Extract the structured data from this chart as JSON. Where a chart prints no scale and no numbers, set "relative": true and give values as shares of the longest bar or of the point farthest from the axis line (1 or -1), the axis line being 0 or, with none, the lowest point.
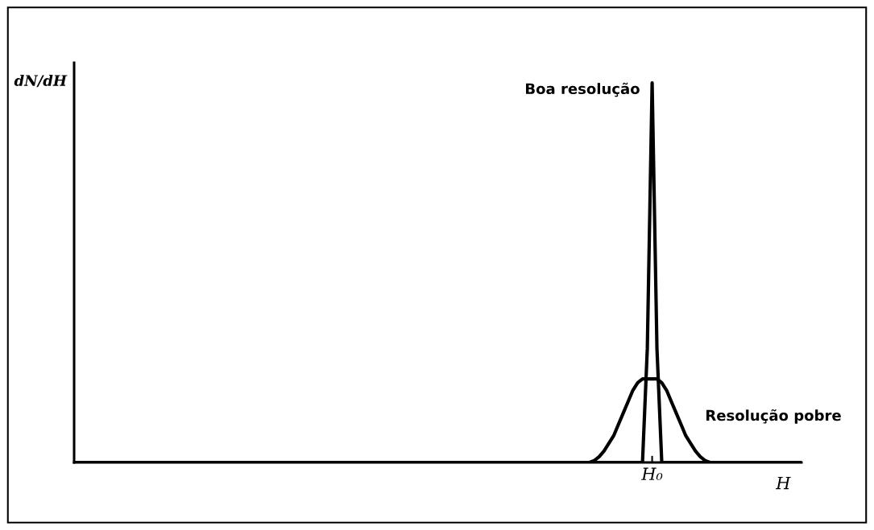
{
  "chart_data": {
    "type": "line",
    "relative": true,
    "ylabel": "dN/dH",
    "xlabel": "H",
    "categories": [
      null,
      null,
      null,
      null,
      null,
      null,
      null,
      null,
      null,
      null,
      null,
      null,
      null,
      null,
      null,
      null,
      null,
      null,
      null,
      null,
      null,
      null,
      null,
      null,
      null,
      null,
      null,
      null,
      null,
      null,
      null,
      null,
      null,
      null,
      null,
      null,
      null,
      null,
      null,
      null,
      null,
      null,
      null,
      null,
      null,
      null,
      null,
      null,
      null,
      null,
      null,
      null,
      null,
      null,
      null,
      null,
      null,
      null,
      null,
      null,
      null,
      null,
      null,
      null,
      null,
      null,
      null,
      null,
      null,
      null,
      null,
      null,
      null,
      null,
      null,
      null,
      null,
      null,
      null,
      null,
      null,
      null,
      null,
      null,
      null,
      null,
      null,
      null,
      null,
      null,
      null,
      null,
      null,
      null,
      null,
      null,
      null,
      null,
      null,
      null,
      null,
      null,
      null,
      null,
      null,
      null,
      null,
      null,
      null,
      null,
      null,
      null,
      null,
      null,
      null,
      null,
      null,
      null,
      null,
      null,
      null,
      null,
      null,
      null,
      null,
      null,
      null,
      null,
      null,
      null,
      null,
      null,
      null,
      null,
      null,
      null,
      null,
      null,
      null,
      null,
      null,
      null,
      null,
      null,
      null,
      null,
      null,
      null,
      null,
      null,
      null,
      null
    ],
    "series": [
      {
        "name": "Boa resolução",
        "color": "#000000",
        "values": [
          0,
          0,
          0,
          0,
          0,
          0,
          0,
          0,
          0,
          0,
          0,
          0,
          0,
          0,
          0,
          0,
          0,
          0,
          0,
          0,
          0,
          0,
          0,
          0,
          0,
          0,
          0,
          0,
          0,
          0,
          0,
          0,
          0,
          0,
          0,
          0,
          0,
          0,
          0,
          0,
          0,
          0,
          0,
          0,
          0,
          0,
          0,
          0,
          0,
          0,
          0,
          0,
          0,
          0,
          0,
          0,
          0,
          0,
          0,
          0,
          0,
          0,
          0,
          0,
          0,
          0,
          0,
          0,
          0,
          0,
          0,
          0,
          0,
          0,
          0,
          0,
          0,
          0,
          0,
          0,
          0,
          0,
          0,
          0,
          0,
          0,
          0,
          0,
          0,
          0,
          0,
          0,
          0,
          0,
          0,
          0,
          0,
          0,
          0,
          0,
          0,
          0,
          0,
          0,
          0,
          0,
          0,
          0,
          0,
          0,
          0,
          0,
          0,
          0,
          0,
          0,
          0,
          0,
          0,
          0.3,
          1,
          0.3,
          0,
          0,
          0,
          0,
          0,
          0,
          0,
          0,
          0,
          0,
          0,
          0,
          0,
          0,
          0,
          0,
          0,
          0,
          0,
          0,
          0,
          0,
          0,
          0,
          0,
          0,
          0,
          0,
          0,
          0
        ]
      },
      {
        "name": "Resolução pobre",
        "color": "#000000",
        "values": [
          0,
          0,
          0,
          0,
          0,
          0,
          0,
          0,
          0,
          0,
          0,
          0,
          0,
          0,
          0,
          0,
          0,
          0,
          0,
          0,
          0,
          0,
          0,
          0,
          0,
          0,
          0,
          0,
          0,
          0,
          0,
          0,
          0,
          0,
          0,
          0,
          0,
          0,
          0,
          0,
          0,
          0,
          0,
          0,
          0,
          0,
          0,
          0,
          0,
          0,
          0,
          0,
          0,
          0,
          0,
          0,
          0,
          0,
          0,
          0,
          0,
          0,
          0,
          0,
          0,
          0,
          0,
          0,
          0,
          0,
          0,
          0,
          0,
          0,
          0,
          0,
          0,
          0,
          0,
          0,
          0,
          0,
          0,
          0,
          0,
          0,
          0,
          0,
          0,
          0,
          0,
          0,
          0,
          0,
          0,
          0,
          0,
          0,
          0,
          0,
          0,
          0,
          0,
          0,
          0,
          0,
          0,
          0,
          0.005,
          0.015,
          0.03,
          0.05,
          0.07,
          0.1,
          0.13,
          0.16,
          0.19,
          0.21,
          0.22,
          0.22,
          0.22,
          0.22,
          0.21,
          0.19,
          0.16,
          0.13,
          0.1,
          0.07,
          0.05,
          0.03,
          0.015,
          0.005,
          0,
          0,
          0,
          0,
          0,
          0,
          0,
          0,
          0,
          0,
          0,
          0,
          0,
          0,
          0,
          0,
          0,
          0,
          0,
          0
        ]
      }
    ],
    "annotations": [
      "H₀"
    ],
    "legend": false,
    "marker": "none",
    "line_style": "solid"
  }
}
